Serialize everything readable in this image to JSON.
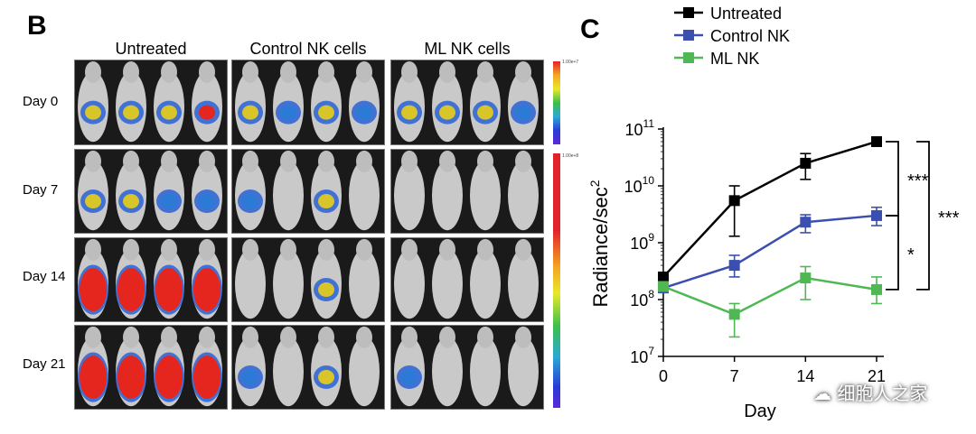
{
  "panel_b": {
    "letter": "B",
    "columns": [
      "Untreated",
      "Control NK cells",
      "ML NK cells"
    ],
    "rows": [
      "Day 0",
      "Day 7",
      "Day 14",
      "Day 21"
    ],
    "scale_labels": [
      "1.00e+7",
      "1.00e+8"
    ]
  },
  "panel_c": {
    "letter": "C"
  },
  "watermark": "细胞人之家",
  "chart_data": {
    "type": "line",
    "title": "",
    "xlabel": "Day",
    "ylabel": "Radiance/sec2",
    "x": [
      0,
      7,
      14,
      21
    ],
    "x_ticks": [
      "0",
      "7",
      "14",
      "21"
    ],
    "yscale": "log",
    "ylim": [
      10000000,
      100000000000
    ],
    "y_ticks": [
      "10^7",
      "10^8",
      "10^9",
      "10^10",
      "10^11"
    ],
    "legend_position": "top-left",
    "series": [
      {
        "name": "Untreated",
        "color": "#000000",
        "values": [
          250000000,
          5500000000,
          25000000000,
          60000000000
        ],
        "err_low": [
          220000000,
          1300000000,
          13000000000,
          60000000000
        ],
        "err_high": [
          280000000,
          10000000000,
          37000000000,
          60000000000
        ]
      },
      {
        "name": "Control NK",
        "color": "#3b4fb0",
        "values": [
          160000000,
          400000000,
          2300000000,
          3000000000
        ],
        "err_low": [
          140000000,
          250000000,
          1500000000,
          2000000000
        ],
        "err_high": [
          180000000,
          600000000,
          3100000000,
          4200000000
        ]
      },
      {
        "name": "ML NK",
        "color": "#4fb854",
        "values": [
          170000000,
          55000000,
          240000000,
          150000000
        ],
        "err_low": [
          150000000,
          22000000,
          100000000,
          85000000
        ],
        "err_high": [
          190000000,
          85000000,
          380000000,
          250000000
        ]
      }
    ],
    "significance": [
      {
        "label": "***",
        "between": [
          "Untreated",
          "Control NK"
        ]
      },
      {
        "label": "*",
        "between": [
          "Control NK",
          "ML NK"
        ]
      },
      {
        "label": "***",
        "between": [
          "Untreated",
          "ML NK"
        ]
      }
    ]
  }
}
